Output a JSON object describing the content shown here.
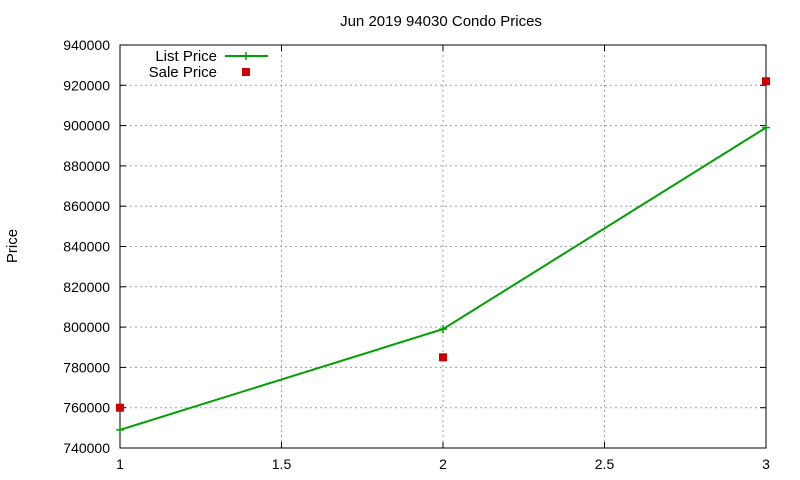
{
  "chart_data": {
    "type": "line",
    "title": "Jun 2019 94030 Condo Prices",
    "xlabel": "",
    "ylabel": "Price",
    "xlim": [
      1,
      3
    ],
    "ylim": [
      740000,
      940000
    ],
    "x_ticks": [
      "1",
      "1.5",
      "2",
      "2.5",
      "3"
    ],
    "y_ticks": [
      "740000",
      "760000",
      "780000",
      "800000",
      "820000",
      "840000",
      "860000",
      "880000",
      "900000",
      "920000",
      "940000"
    ],
    "grid": true,
    "legend_position": "top-left",
    "series": [
      {
        "name": "List Price",
        "style": "linespoints",
        "marker": "plus",
        "color": "#00a000",
        "x": [
          1,
          2,
          3
        ],
        "y": [
          749000,
          799000,
          899000
        ]
      },
      {
        "name": "Sale Price",
        "style": "points",
        "marker": "square",
        "color": "#cc0000",
        "x": [
          1,
          2,
          3
        ],
        "y": [
          760000,
          785000,
          922000
        ]
      }
    ]
  }
}
